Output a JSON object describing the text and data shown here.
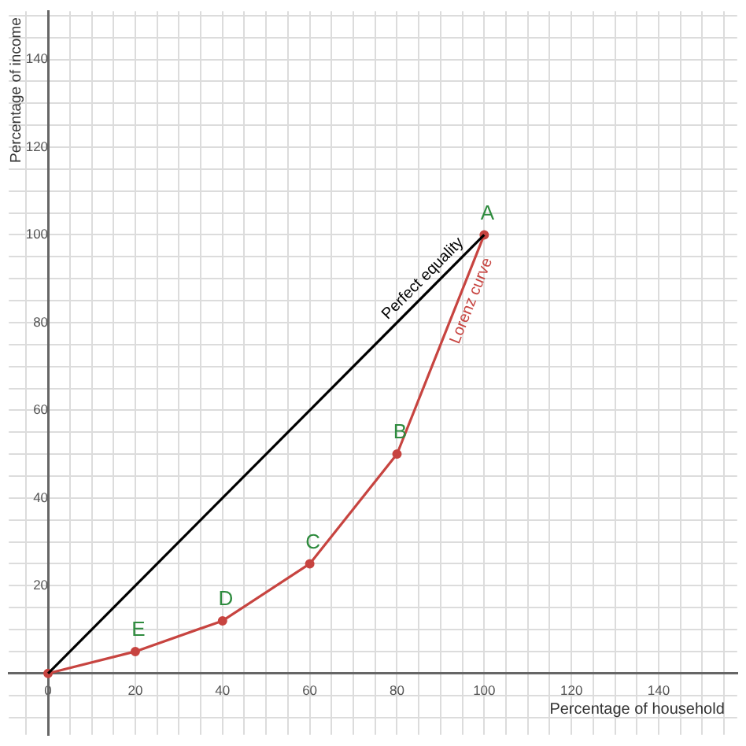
{
  "chart_data": {
    "type": "line",
    "xlabel": "Percentage of household",
    "ylabel": "Percentage of income",
    "xlim": [
      -9,
      158
    ],
    "ylim": [
      -14,
      151
    ],
    "xticks": [
      {
        "value": -5,
        "label": null
      },
      {
        "value": 0,
        "label": "0"
      },
      {
        "value": 5,
        "label": null
      },
      {
        "value": 10,
        "label": null
      },
      {
        "value": 15,
        "label": null
      },
      20,
      {
        "value": 25,
        "label": null
      },
      {
        "value": 30,
        "label": null
      },
      {
        "value": 35,
        "label": null
      },
      40,
      {
        "value": 45,
        "label": null
      },
      {
        "value": 50,
        "label": null
      },
      {
        "value": 55,
        "label": null
      },
      60,
      {
        "value": 65,
        "label": null
      },
      {
        "value": 70,
        "label": null
      },
      {
        "value": 75,
        "label": null
      },
      80,
      {
        "value": 85,
        "label": null
      },
      {
        "value": 90,
        "label": null
      },
      {
        "value": 95,
        "label": null
      },
      100,
      {
        "value": 105,
        "label": null
      },
      {
        "value": 110,
        "label": null
      },
      {
        "value": 115,
        "label": null
      },
      120,
      {
        "value": 125,
        "label": null
      },
      {
        "value": 130,
        "label": null
      },
      {
        "value": 135,
        "label": null
      },
      140,
      {
        "value": 145,
        "label": null
      },
      {
        "value": 150,
        "label": null
      },
      {
        "value": 155,
        "label": null
      }
    ],
    "yticks": [
      {
        "value": -10,
        "label": null
      },
      {
        "value": -5,
        "label": null
      },
      {
        "value": 0,
        "label": null
      },
      {
        "value": 5,
        "label": null
      },
      {
        "value": 10,
        "label": null
      },
      {
        "value": 15,
        "label": null
      },
      20,
      {
        "value": 25,
        "label": null
      },
      {
        "value": 30,
        "label": null
      },
      {
        "value": 35,
        "label": null
      },
      40,
      {
        "value": 45,
        "label": null
      },
      {
        "value": 50,
        "label": null
      },
      {
        "value": 55,
        "label": null
      },
      60,
      {
        "value": 65,
        "label": null
      },
      {
        "value": 70,
        "label": null
      },
      {
        "value": 75,
        "label": null
      },
      80,
      {
        "value": 85,
        "label": null
      },
      {
        "value": 90,
        "label": null
      },
      {
        "value": 95,
        "label": null
      },
      100,
      {
        "value": 105,
        "label": null
      },
      {
        "value": 110,
        "label": null
      },
      {
        "value": 115,
        "label": null
      },
      120,
      {
        "value": 125,
        "label": null
      },
      {
        "value": 130,
        "label": null
      },
      {
        "value": 135,
        "label": null
      },
      140,
      {
        "value": 145,
        "label": null
      },
      {
        "value": 150,
        "label": null
      }
    ],
    "grid": true,
    "legend": false,
    "series": [
      {
        "name": "Perfect equality",
        "color": "#000000",
        "x": [
          0,
          100
        ],
        "values": [
          0,
          100
        ],
        "marker": "none"
      },
      {
        "name": "Lorenz curve",
        "color": "#c74440",
        "x": [
          0,
          20,
          40,
          60,
          80,
          100
        ],
        "values": [
          0,
          5,
          12,
          25,
          50,
          100
        ],
        "marker": "circle"
      }
    ],
    "annotations": [
      {
        "text": "A",
        "x": 100,
        "y": 100
      },
      {
        "text": "B",
        "x": 80,
        "y": 50
      },
      {
        "text": "C",
        "x": 60,
        "y": 25
      },
      {
        "text": "D",
        "x": 40,
        "y": 12
      },
      {
        "text": "E",
        "x": 20,
        "y": 5
      }
    ]
  }
}
